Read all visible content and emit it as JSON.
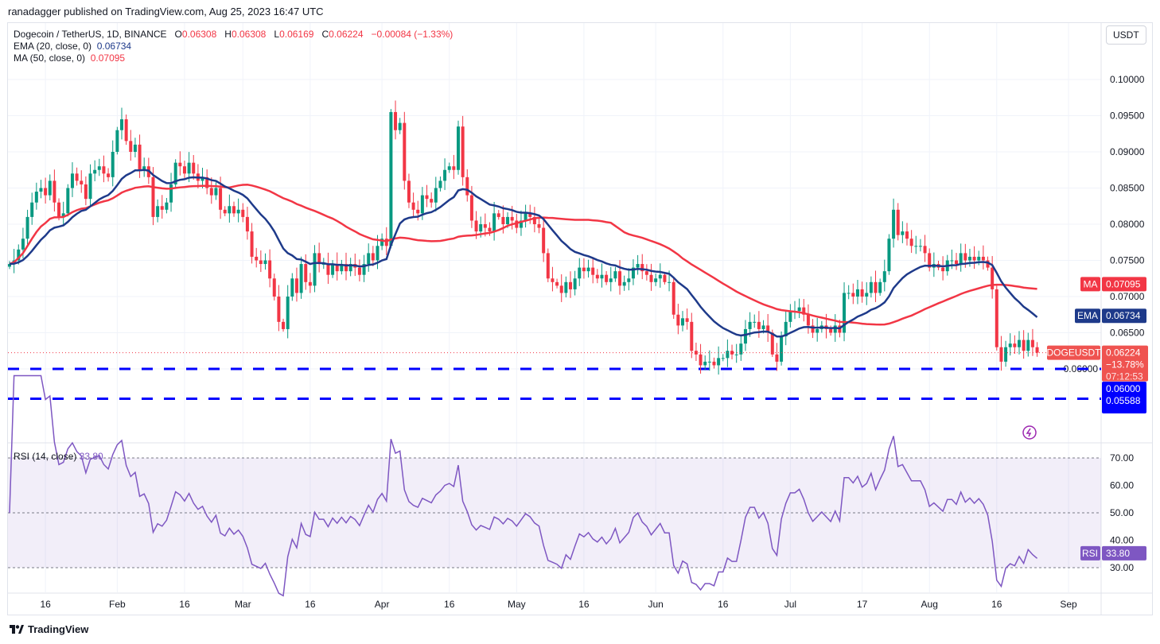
{
  "header": {
    "published": "ranadagger published on TradingView.com, Aug 25, 2023 16:47 UTC",
    "symbol": "Dogecoin / TetherUS, 1D, BINANCE",
    "o_label": "O",
    "o": "0.06308",
    "h_label": "H",
    "h": "0.06308",
    "l_label": "L",
    "l": "0.06169",
    "c_label": "C",
    "c": "0.06224",
    "change": "−0.00084 (−1.33%)",
    "ema_label": "EMA (20, close, 0)",
    "ema_value": "0.06734",
    "ma_label": "MA (50, close, 0)",
    "ma_value": "0.07095",
    "currency": "USDT"
  },
  "rsi": {
    "label": "RSI (14, close)",
    "value": "33.80",
    "tag": "RSI",
    "ticks": [
      "70.00",
      "60.00",
      "50.00",
      "40.00",
      "30.00"
    ]
  },
  "tags": {
    "ma_tag": "MA",
    "ma_value": "0.07095",
    "ema_tag": "EMA",
    "ema_value": "0.06734",
    "symbol_tag": "DOGEUSDT",
    "price": "0.06224",
    "pct": "−13.78%",
    "countdown": "07:12:53",
    "support1": "0.06000",
    "support2": "0.05588"
  },
  "footer": {
    "brand": "TradingView"
  },
  "colors": {
    "up": "#089981",
    "down": "#f23645",
    "ema": "#1e3a8a",
    "ma": "#f23645",
    "support": "#0000ff",
    "rsi": "#7e57c2"
  },
  "chart_data": {
    "type": "candlestick",
    "start_date": "2023-01-08",
    "end_date": "2023-08-25",
    "ylim": [
      0.052,
      0.105
    ],
    "y_ticks": [
      "0.10000",
      "0.09500",
      "0.09000",
      "0.08500",
      "0.08000",
      "0.07500",
      "0.07000",
      "0.06500",
      "0.06000"
    ],
    "x_ticks": [
      {
        "label": "16",
        "date": "2023-01-16"
      },
      {
        "label": "Feb",
        "date": "2023-02-01"
      },
      {
        "label": "16",
        "date": "2023-02-16"
      },
      {
        "label": "Mar",
        "date": "2023-03-01"
      },
      {
        "label": "16",
        "date": "2023-03-16"
      },
      {
        "label": "Apr",
        "date": "2023-04-01"
      },
      {
        "label": "16",
        "date": "2023-04-16"
      },
      {
        "label": "May",
        "date": "2023-05-01"
      },
      {
        "label": "16",
        "date": "2023-05-16"
      },
      {
        "label": "Jun",
        "date": "2023-06-01"
      },
      {
        "label": "16",
        "date": "2023-06-16"
      },
      {
        "label": "Jul",
        "date": "2023-07-01"
      },
      {
        "label": "17",
        "date": "2023-07-17"
      },
      {
        "label": "Aug",
        "date": "2023-08-01"
      },
      {
        "label": "16",
        "date": "2023-08-16"
      },
      {
        "label": "Sep",
        "date": "2023-09-01"
      }
    ],
    "support_levels": [
      0.06,
      0.05588
    ],
    "closes": [
      0.0745,
      0.075,
      0.0765,
      0.078,
      0.081,
      0.083,
      0.0845,
      0.085,
      0.084,
      0.086,
      0.083,
      0.081,
      0.0815,
      0.085,
      0.087,
      0.086,
      0.0855,
      0.0835,
      0.087,
      0.0875,
      0.088,
      0.087,
      0.0865,
      0.09,
      0.093,
      0.0945,
      0.0915,
      0.09,
      0.091,
      0.0875,
      0.088,
      0.0865,
      0.081,
      0.0825,
      0.082,
      0.083,
      0.0855,
      0.0885,
      0.088,
      0.087,
      0.0885,
      0.087,
      0.086,
      0.0865,
      0.085,
      0.084,
      0.085,
      0.082,
      0.0815,
      0.0825,
      0.0815,
      0.082,
      0.081,
      0.079,
      0.0755,
      0.075,
      0.0745,
      0.075,
      0.0725,
      0.07,
      0.0665,
      0.0655,
      0.07,
      0.0725,
      0.0705,
      0.0745,
      0.072,
      0.0715,
      0.076,
      0.0745,
      0.0745,
      0.073,
      0.0745,
      0.0735,
      0.0745,
      0.0735,
      0.0745,
      0.074,
      0.073,
      0.0745,
      0.076,
      0.075,
      0.077,
      0.078,
      0.077,
      0.0955,
      0.093,
      0.094,
      0.086,
      0.083,
      0.082,
      0.0815,
      0.084,
      0.0835,
      0.083,
      0.085,
      0.086,
      0.0875,
      0.088,
      0.0875,
      0.0935,
      0.0865,
      0.084,
      0.0805,
      0.079,
      0.08,
      0.0795,
      0.079,
      0.0815,
      0.081,
      0.08,
      0.081,
      0.0805,
      0.0795,
      0.0805,
      0.0815,
      0.081,
      0.08,
      0.0795,
      0.076,
      0.0725,
      0.072,
      0.0715,
      0.0705,
      0.072,
      0.071,
      0.0725,
      0.074,
      0.0735,
      0.074,
      0.073,
      0.0725,
      0.073,
      0.072,
      0.0725,
      0.0735,
      0.0715,
      0.072,
      0.0725,
      0.074,
      0.0745,
      0.0735,
      0.073,
      0.072,
      0.0725,
      0.073,
      0.072,
      0.072,
      0.0675,
      0.066,
      0.067,
      0.0665,
      0.0625,
      0.062,
      0.0605,
      0.061,
      0.061,
      0.0605,
      0.0615,
      0.0615,
      0.0625,
      0.062,
      0.062,
      0.0635,
      0.0655,
      0.0665,
      0.0665,
      0.0655,
      0.066,
      0.065,
      0.062,
      0.061,
      0.0645,
      0.0665,
      0.068,
      0.068,
      0.0685,
      0.0675,
      0.066,
      0.065,
      0.0655,
      0.066,
      0.0655,
      0.065,
      0.066,
      0.065,
      0.0705,
      0.0705,
      0.07,
      0.071,
      0.07,
      0.0705,
      0.072,
      0.0705,
      0.072,
      0.0735,
      0.078,
      0.082,
      0.0785,
      0.079,
      0.078,
      0.077,
      0.077,
      0.077,
      0.076,
      0.074,
      0.0745,
      0.074,
      0.0735,
      0.075,
      0.075,
      0.0745,
      0.076,
      0.075,
      0.0755,
      0.075,
      0.0755,
      0.075,
      0.074,
      0.071,
      0.063,
      0.061,
      0.063,
      0.0635,
      0.063,
      0.064,
      0.0625,
      0.064,
      0.063,
      0.06224
    ]
  }
}
